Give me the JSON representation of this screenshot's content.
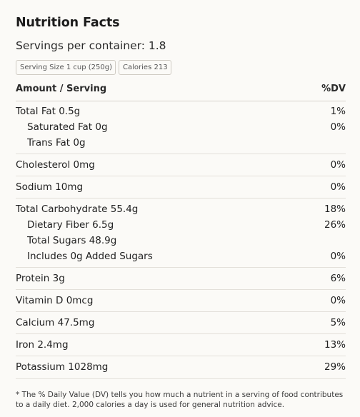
{
  "title": "Nutrition Facts",
  "servings": "Servings per container: 1.8",
  "badges": {
    "serving_size": "Serving Size 1 cup (250g)",
    "calories": "Calories 213"
  },
  "header": {
    "amount": "Amount / Serving",
    "dv": "%DV"
  },
  "nutrients": {
    "total_fat": {
      "label": "Total Fat 0.5g",
      "dv": "1%"
    },
    "saturated_fat": {
      "label": "Saturated Fat 0g",
      "dv": "0%"
    },
    "trans_fat": {
      "label": "Trans Fat 0g",
      "dv": ""
    },
    "cholesterol": {
      "label": "Cholesterol 0mg",
      "dv": "0%"
    },
    "sodium": {
      "label": "Sodium 10mg",
      "dv": "0%"
    },
    "total_carb": {
      "label": "Total Carbohydrate 55.4g",
      "dv": "18%"
    },
    "dietary_fiber": {
      "label": "Dietary Fiber 6.5g",
      "dv": "26%"
    },
    "total_sugars": {
      "label": "Total Sugars 48.9g",
      "dv": ""
    },
    "added_sugars": {
      "label": "Includes 0g Added Sugars",
      "dv": "0%"
    },
    "protein": {
      "label": "Protein 3g",
      "dv": "6%"
    },
    "vitamin_d": {
      "label": "Vitamin D 0mcg",
      "dv": "0%"
    },
    "calcium": {
      "label": "Calcium 47.5mg",
      "dv": "5%"
    },
    "iron": {
      "label": "Iron 2.4mg",
      "dv": "13%"
    },
    "potassium": {
      "label": "Potassium 1028mg",
      "dv": "29%"
    }
  },
  "footnote": "* The % Daily Value (DV) tells you how much a nutrient in a serving of food contributes to a daily diet. 2,000 calories a day is used for general nutrition advice."
}
